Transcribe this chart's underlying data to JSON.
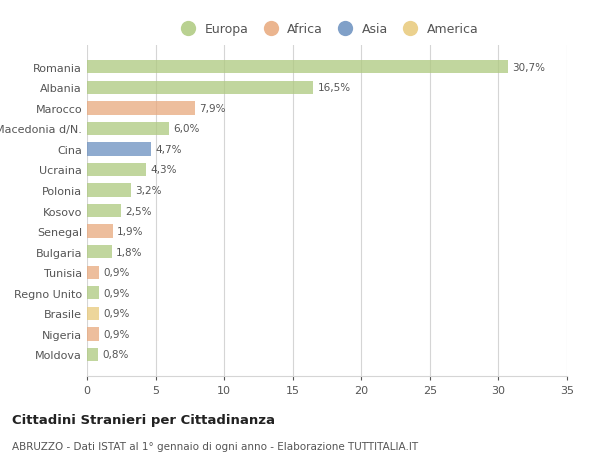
{
  "countries": [
    "Romania",
    "Albania",
    "Marocco",
    "Macedonia d/N.",
    "Cina",
    "Ucraina",
    "Polonia",
    "Kosovo",
    "Senegal",
    "Bulgaria",
    "Tunisia",
    "Regno Unito",
    "Brasile",
    "Nigeria",
    "Moldova"
  ],
  "values": [
    30.7,
    16.5,
    7.9,
    6.0,
    4.7,
    4.3,
    3.2,
    2.5,
    1.9,
    1.8,
    0.9,
    0.9,
    0.9,
    0.9,
    0.8
  ],
  "labels": [
    "30,7%",
    "16,5%",
    "7,9%",
    "6,0%",
    "4,7%",
    "4,3%",
    "3,2%",
    "2,5%",
    "1,9%",
    "1,8%",
    "0,9%",
    "0,9%",
    "0,9%",
    "0,9%",
    "0,8%"
  ],
  "colors": [
    "#adc97e",
    "#adc97e",
    "#e8a87c",
    "#adc97e",
    "#6a8fbf",
    "#adc97e",
    "#adc97e",
    "#adc97e",
    "#e8a87c",
    "#adc97e",
    "#e8a87c",
    "#adc97e",
    "#e8c97a",
    "#e8a87c",
    "#adc97e"
  ],
  "legend_labels": [
    "Europa",
    "Africa",
    "Asia",
    "America"
  ],
  "legend_colors": [
    "#adc97e",
    "#e8a87c",
    "#6a8fbf",
    "#e8c97a"
  ],
  "title": "Cittadini Stranieri per Cittadinanza",
  "subtitle": "ABRUZZO - Dati ISTAT al 1° gennaio di ogni anno - Elaborazione TUTTITALIA.IT",
  "xlim": [
    0,
    35
  ],
  "xticks": [
    0,
    5,
    10,
    15,
    20,
    25,
    30,
    35
  ],
  "background_color": "#ffffff",
  "bar_height": 0.65,
  "grid_color": "#d5d5d5",
  "text_color": "#555555",
  "bar_alpha": 0.75
}
